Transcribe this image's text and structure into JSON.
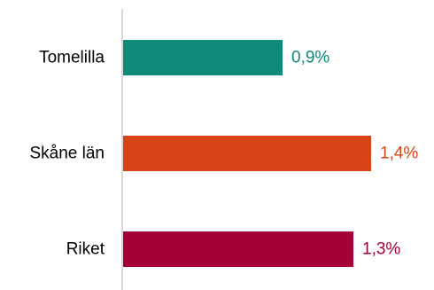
{
  "chart_data": {
    "type": "bar",
    "orientation": "horizontal",
    "categories": [
      "Tomelilla",
      "Skåne län",
      "Riket"
    ],
    "values": [
      0.9,
      1.4,
      1.3
    ],
    "value_labels": [
      "0,9%",
      "1,4%",
      "1,3%"
    ],
    "colors": [
      "#0e8a78",
      "#d84315",
      "#a50036"
    ],
    "xlim": [
      0,
      1.56
    ],
    "axis_color": "#cccccc",
    "title": "",
    "xlabel": "",
    "ylabel": "",
    "grid": false,
    "legend": "none"
  }
}
